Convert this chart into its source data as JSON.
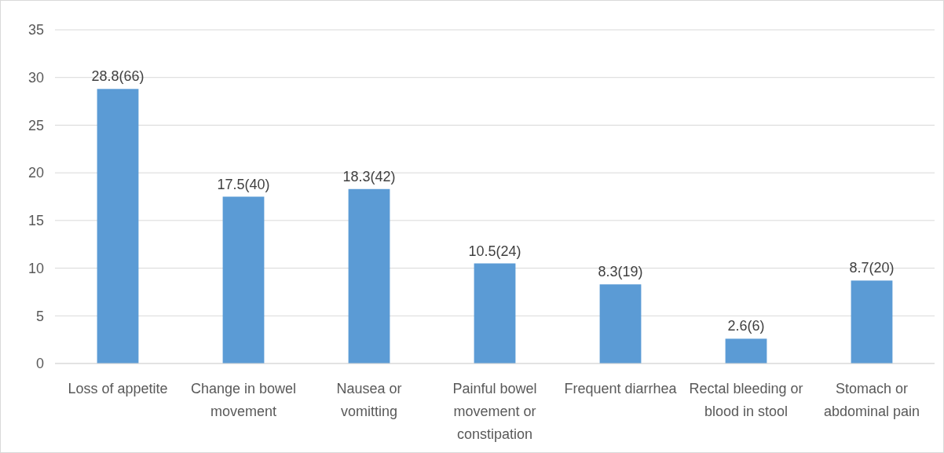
{
  "chart_data": {
    "type": "bar",
    "categories": [
      "Loss of appetite",
      "Change in bowel movement",
      "Nausea or vomitting",
      "Painful bowel movement or constipation",
      "Frequent diarrhea",
      "Rectal bleeding or blood in stool",
      "Stomach or abdominal pain"
    ],
    "values": [
      28.8,
      17.5,
      18.3,
      10.5,
      8.3,
      2.6,
      8.7
    ],
    "value_labels": [
      "28.8(66)",
      "17.5(40)",
      "18.3(42)",
      "10.5(24)",
      "8.3(19)",
      "2.6(6)",
      "8.7(20)"
    ],
    "color": "#5b9bd5",
    "ylim": [
      0,
      35
    ],
    "yticks": [
      0,
      5,
      10,
      15,
      20,
      25,
      30,
      35
    ],
    "grid": "y"
  }
}
